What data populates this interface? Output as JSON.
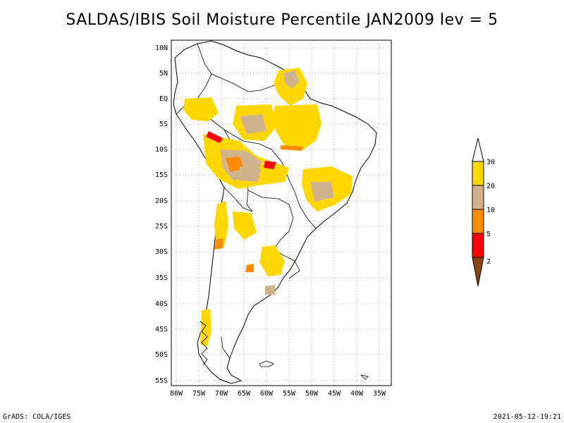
{
  "title": "SALDAS/IBIS Soil Moisture Percentile JAN2009 lev = 5",
  "footer": {
    "left": "GrADS: COLA/IGES",
    "right": "2021-05-12-19:21"
  },
  "axes": {
    "lon_labels": [
      "80W",
      "75W",
      "70W",
      "65W",
      "60W",
      "55W",
      "50W",
      "45W",
      "40W",
      "35W"
    ],
    "lat_labels": [
      "10N",
      "5N",
      "EQ",
      "5S",
      "10S",
      "15S",
      "20S",
      "25S",
      "30S",
      "35S",
      "40S",
      "45S",
      "50S",
      "55S"
    ],
    "lon_range": [
      -81,
      -33
    ],
    "lat_range": [
      -56,
      12
    ],
    "grid": "dotted"
  },
  "legend": {
    "labels": [
      "30",
      "20",
      "10",
      "5",
      "2"
    ],
    "colors": {
      "above30": "#ffffff",
      "20-30": "#ffd700",
      "10-20": "#d2b48c",
      "5-10": "#ff8c00",
      "2-5": "#ff0000",
      "below2": "#8b4513"
    }
  }
}
